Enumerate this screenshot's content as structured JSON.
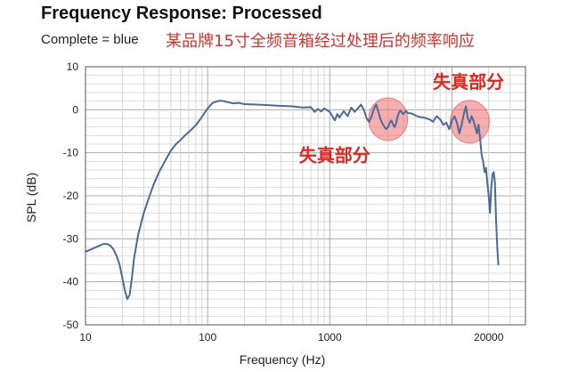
{
  "chart_data": {
    "type": "line",
    "title": "Frequency Response: Processed",
    "subtitle": "Complete = blue",
    "caption": "某品牌15寸全频音箱经过处理后的频率响应",
    "xlabel": "Frequency (Hz)",
    "ylabel": "SPL (dB)",
    "x_scale": "log",
    "xlim": [
      10,
      40000
    ],
    "ylim": [
      -50,
      10
    ],
    "x_ticks": [
      {
        "value": 10,
        "label": "10"
      },
      {
        "value": 100,
        "label": "100"
      },
      {
        "value": 1000,
        "label": "1000"
      },
      {
        "value": 20000,
        "label": "20000"
      }
    ],
    "y_ticks": [
      {
        "value": 10,
        "label": "10"
      },
      {
        "value": 0,
        "label": "0"
      },
      {
        "value": -10,
        "label": "-10"
      },
      {
        "value": -20,
        "label": "-20"
      },
      {
        "value": -30,
        "label": "-30"
      },
      {
        "value": -40,
        "label": "-40"
      },
      {
        "value": -50,
        "label": "-50"
      }
    ],
    "grid": true,
    "series": [
      {
        "color": "#4a6a9a",
        "points": [
          [
            10,
            -33
          ],
          [
            11,
            -32.5
          ],
          [
            12.5,
            -31.8
          ],
          [
            14,
            -31.2
          ],
          [
            15,
            -31.2
          ],
          [
            16,
            -31.6
          ],
          [
            17,
            -32.5
          ],
          [
            18,
            -34
          ],
          [
            19,
            -36
          ],
          [
            20,
            -39
          ],
          [
            21,
            -42
          ],
          [
            22,
            -44
          ],
          [
            23,
            -43
          ],
          [
            24,
            -39
          ],
          [
            25,
            -34.5
          ],
          [
            27,
            -29
          ],
          [
            30,
            -24
          ],
          [
            33,
            -20.5
          ],
          [
            36,
            -17.5
          ],
          [
            40,
            -14.5
          ],
          [
            45,
            -11.8
          ],
          [
            50,
            -9.5
          ],
          [
            55,
            -8
          ],
          [
            60,
            -7
          ],
          [
            65,
            -6
          ],
          [
            70,
            -5.2
          ],
          [
            75,
            -4.4
          ],
          [
            80,
            -3.6
          ],
          [
            85,
            -2.6
          ],
          [
            90,
            -1.6
          ],
          [
            95,
            -0.6
          ],
          [
            100,
            0.3
          ],
          [
            105,
            1
          ],
          [
            110,
            1.6
          ],
          [
            120,
            2
          ],
          [
            130,
            2.1
          ],
          [
            140,
            1.9
          ],
          [
            160,
            1.5
          ],
          [
            180,
            1.6
          ],
          [
            200,
            1.3
          ],
          [
            250,
            1.2
          ],
          [
            300,
            1.1
          ],
          [
            400,
            0.9
          ],
          [
            500,
            0.8
          ],
          [
            600,
            0.5
          ],
          [
            700,
            0.6
          ],
          [
            750,
            -0.5
          ],
          [
            800,
            0.2
          ],
          [
            850,
            -0.4
          ],
          [
            900,
            0.3
          ],
          [
            1000,
            -0.5
          ],
          [
            1100,
            -2.5
          ],
          [
            1150,
            -1
          ],
          [
            1200,
            -1.8
          ],
          [
            1300,
            -0.3
          ],
          [
            1400,
            -1.5
          ],
          [
            1500,
            0.5
          ],
          [
            1600,
            -0.5
          ],
          [
            1700,
            0.3
          ],
          [
            1800,
            1.2
          ],
          [
            1900,
            0
          ],
          [
            2000,
            -2
          ],
          [
            2100,
            -2.8
          ],
          [
            2200,
            -1.5
          ],
          [
            2300,
            0.3
          ],
          [
            2400,
            1.2
          ],
          [
            2500,
            -0.5
          ],
          [
            2600,
            -2.2
          ],
          [
            2700,
            -3.2
          ],
          [
            2800,
            -4
          ],
          [
            2900,
            -4.5
          ],
          [
            3000,
            -4
          ],
          [
            3100,
            -3
          ],
          [
            3200,
            -2.5
          ],
          [
            3300,
            -3.5
          ],
          [
            3400,
            -4
          ],
          [
            3500,
            -3
          ],
          [
            3600,
            -1.5
          ],
          [
            3700,
            -0.5
          ],
          [
            3800,
            -0.3
          ],
          [
            4000,
            -1
          ],
          [
            4200,
            -0.3
          ],
          [
            4400,
            -0.8
          ],
          [
            4600,
            -0.8
          ],
          [
            4800,
            -1
          ],
          [
            5000,
            -1.3
          ],
          [
            5200,
            -1.5
          ],
          [
            5500,
            -1.7
          ],
          [
            5800,
            -1.8
          ],
          [
            6200,
            -2
          ],
          [
            6600,
            -2.3
          ],
          [
            7000,
            -2.8
          ],
          [
            7500,
            -1.5
          ],
          [
            8000,
            -2.2
          ],
          [
            8500,
            -3.5
          ],
          [
            9000,
            -3
          ],
          [
            9500,
            -4.5
          ],
          [
            10000,
            -2.5
          ],
          [
            10500,
            -1.5
          ],
          [
            11000,
            -3
          ],
          [
            11500,
            -5.5
          ],
          [
            12000,
            -3.5
          ],
          [
            12500,
            -1
          ],
          [
            13000,
            0.8
          ],
          [
            13500,
            -2
          ],
          [
            14000,
            -3
          ],
          [
            14500,
            -1.5
          ],
          [
            15000,
            -2.5
          ],
          [
            15500,
            -4
          ],
          [
            16000,
            -5.5
          ],
          [
            16500,
            -3.5
          ],
          [
            17000,
            -6.5
          ],
          [
            17500,
            -10.5
          ],
          [
            18000,
            -12
          ],
          [
            18500,
            -14.5
          ],
          [
            19000,
            -13.5
          ],
          [
            19500,
            -17
          ],
          [
            20000,
            -20
          ],
          [
            20500,
            -24
          ],
          [
            21000,
            -18
          ],
          [
            21500,
            -15
          ],
          [
            22000,
            -14.5
          ],
          [
            22500,
            -17
          ],
          [
            23000,
            -26
          ],
          [
            23500,
            -32
          ],
          [
            24000,
            -36
          ]
        ]
      }
    ],
    "annotations": [
      {
        "text": "失真部分",
        "label_at": [
          560,
          -12
        ],
        "circle_at": [
          3000,
          -2.2
        ]
      },
      {
        "text": "失真部分",
        "label_at": [
          7000,
          5
        ],
        "circle_at": [
          14000,
          -2.8
        ]
      }
    ]
  }
}
